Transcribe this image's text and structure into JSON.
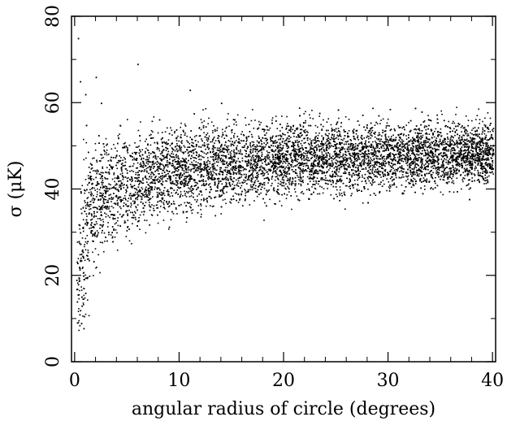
{
  "chart_data": {
    "type": "scatter",
    "title": "",
    "xlabel": "angular radius of circle (degrees)",
    "ylabel": "σ (μK)",
    "xlim": [
      0,
      40
    ],
    "ylim": [
      0,
      80
    ],
    "x_ticks": [
      0,
      10,
      20,
      30,
      40
    ],
    "y_ticks": [
      0,
      20,
      40,
      60,
      80
    ],
    "x_tick_labels": [
      "0",
      "10",
      "20",
      "30",
      "40"
    ],
    "y_tick_labels": [
      "0",
      "20",
      "40",
      "60",
      "80"
    ],
    "grid": false,
    "legend": "none",
    "marker_color": "#000000",
    "series": [
      {
        "points": [
          [
            0.2,
            14
          ],
          [
            0.3,
            18
          ],
          [
            0.4,
            22
          ],
          [
            0.5,
            12
          ],
          [
            0.5,
            30
          ],
          [
            0.6,
            9
          ],
          [
            0.7,
            26
          ],
          [
            0.8,
            20
          ],
          [
            0.9,
            35
          ],
          [
            1.0,
            16
          ],
          [
            1.1,
            40
          ],
          [
            1.2,
            28
          ],
          [
            1.4,
            44
          ],
          [
            1.5,
            33
          ],
          [
            1.7,
            38
          ],
          [
            2.0,
            41
          ],
          [
            2.2,
            30
          ],
          [
            2.5,
            43
          ],
          [
            3.0,
            36
          ],
          [
            3.5,
            45
          ],
          [
            4.0,
            40
          ],
          [
            5.0,
            42
          ],
          [
            6.0,
            44
          ],
          [
            8.0,
            45
          ],
          [
            10.0,
            46
          ],
          [
            12.0,
            46
          ],
          [
            15.0,
            47
          ],
          [
            18.0,
            47
          ],
          [
            20.0,
            47.5
          ],
          [
            25.0,
            48
          ],
          [
            30.0,
            48
          ],
          [
            35.0,
            48.5
          ],
          [
            40.0,
            49
          ],
          [
            0.3,
            75
          ],
          [
            0.5,
            65
          ],
          [
            1.0,
            62
          ],
          [
            2.0,
            66
          ],
          [
            2.5,
            60
          ],
          [
            6.0,
            69
          ],
          [
            11.0,
            63
          ],
          [
            14.0,
            60
          ]
        ]
      }
    ],
    "envelope": {
      "x": [
        0.3,
        0.5,
        1,
        2,
        3,
        5,
        7,
        10,
        15,
        20,
        25,
        30,
        35,
        40
      ],
      "mean": [
        18,
        26,
        32,
        37,
        39,
        41,
        43,
        44.5,
        46,
        47,
        47.5,
        48,
        48.3,
        48.5
      ],
      "spread": [
        8,
        10,
        9,
        7,
        6,
        5.5,
        5,
        4.8,
        4.5,
        4.2,
        4,
        3.8,
        3.6,
        3.5
      ]
    }
  }
}
